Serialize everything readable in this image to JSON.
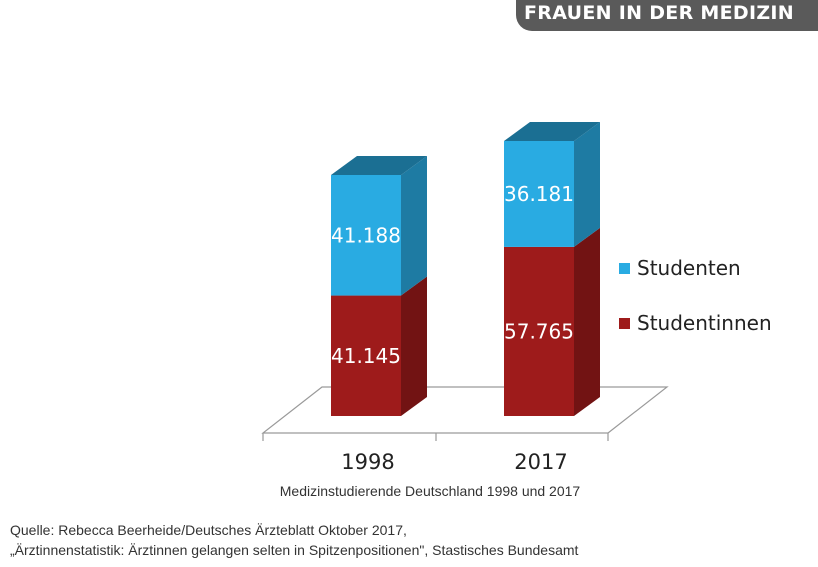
{
  "header": {
    "title": "FRAUEN IN DER MEDIZIN"
  },
  "chart_data": {
    "type": "bar",
    "stacked": true,
    "three_d": true,
    "categories": [
      "1998",
      "2017"
    ],
    "series": [
      {
        "name": "Studentinnen",
        "color": "#9e1b1b",
        "values": [
          41145,
          57765
        ],
        "labels": [
          "41.145",
          "57.765"
        ]
      },
      {
        "name": "Studenten",
        "color": "#29abe2",
        "values": [
          41188,
          36181
        ],
        "labels": [
          "41.188",
          "36.181"
        ]
      }
    ],
    "legend_position": "right",
    "grid": false,
    "ylim": [
      0,
      100000
    ]
  },
  "caption": "Medizinstudierende Deutschland 1998 und 2017",
  "source": {
    "line1": "Quelle: Rebecca Beerheide/Deutsches Ärzteblatt Oktober 2017,",
    "line2": "„Ärztinnenstatistik: Ärztinnen gelangen selten in Spitzenpositionen\", Stastisches Bundesamt"
  }
}
